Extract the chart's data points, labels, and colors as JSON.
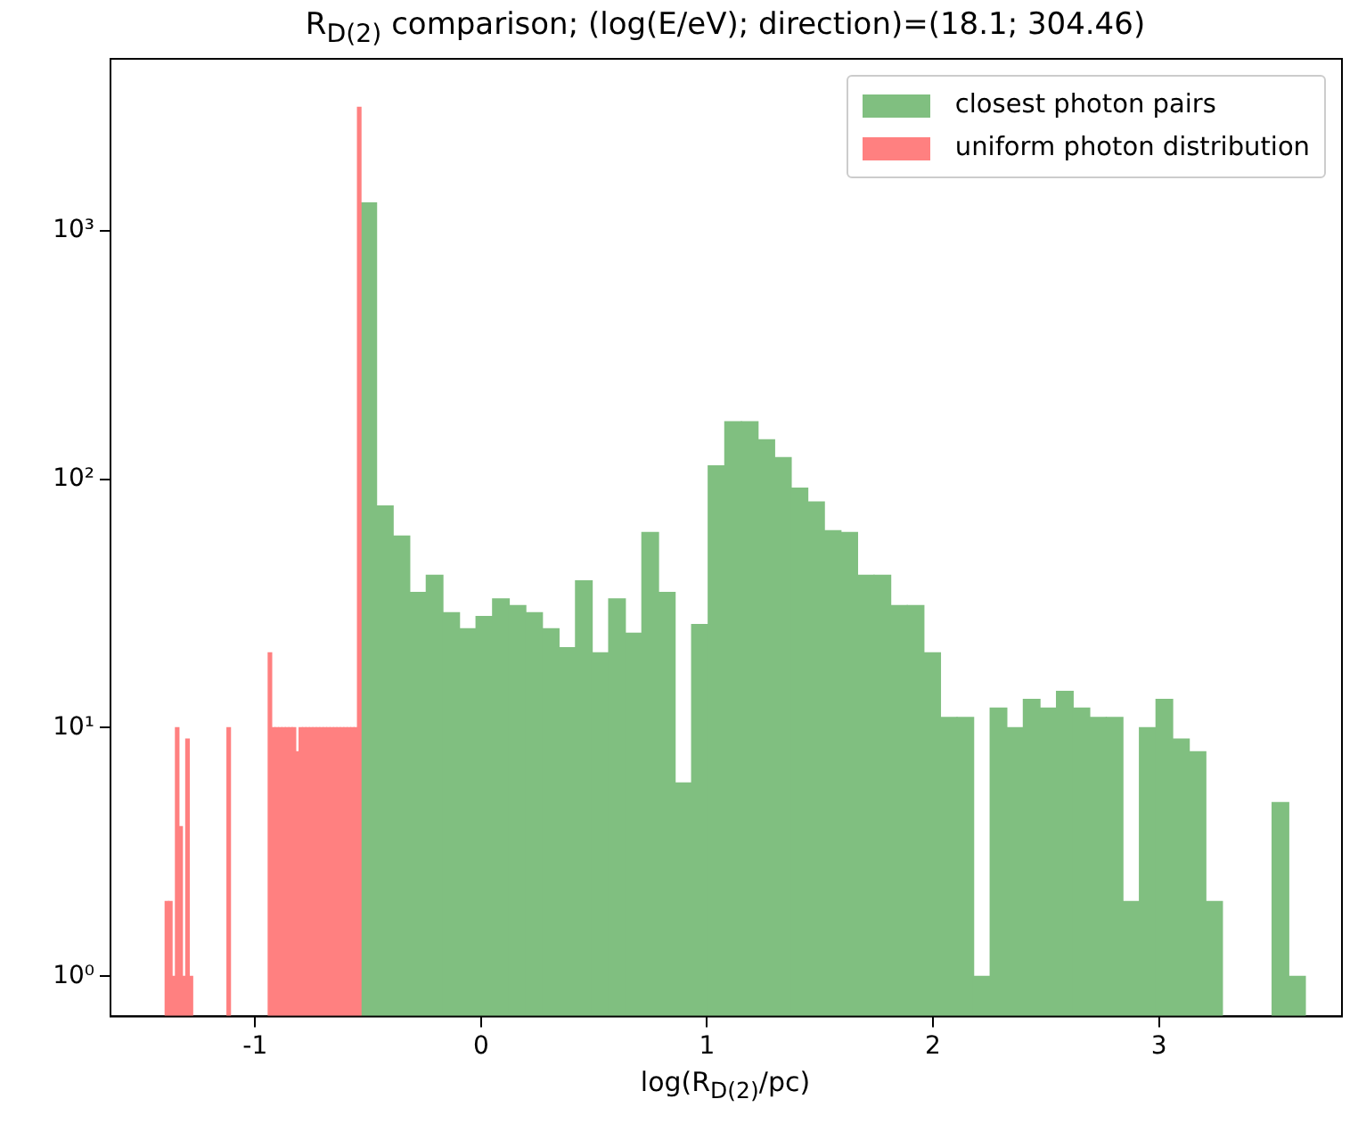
{
  "chart_data": {
    "type": "histogram",
    "title": "R$_{D(2)}$ comparison; (log(E/eV); direction)=(18.1; 304.46)",
    "xlabel": "log(R$_{D(2)}$/pc)",
    "log": "y",
    "grid": false,
    "legend": "top right",
    "xlim": [
      -1.64,
      3.81
    ],
    "xticks": [
      -1,
      0,
      1,
      2,
      3
    ],
    "ylim": [
      0.69,
      4900
    ],
    "yticks": [
      {
        "value": 1,
        "label": "10⁰"
      },
      {
        "value": 10,
        "label": "10¹"
      },
      {
        "value": 100,
        "label": "10²"
      },
      {
        "value": 1000,
        "label": "10³"
      }
    ],
    "bins": [
      -0.536,
      -0.4626,
      -0.3892,
      -0.3158,
      -0.2424,
      -0.169,
      -0.0956,
      -0.0222,
      0.0512,
      0.1246,
      0.198,
      0.2714,
      0.3448,
      0.4182,
      0.4916,
      0.565,
      0.6384,
      0.7118,
      0.7852,
      0.8586,
      0.932,
      1.0054,
      1.0788,
      1.1522,
      1.2256,
      1.299,
      1.3724,
      1.4458,
      1.5192,
      1.5926,
      1.666,
      1.7394,
      1.8128,
      1.8862,
      1.9596,
      2.033,
      2.1064,
      2.1798,
      2.2532,
      2.3266,
      2.4,
      2.4734,
      2.5468,
      2.6202,
      2.6936,
      2.767,
      2.8404,
      2.9138,
      2.9872,
      3.0606,
      3.134,
      3.2074,
      3.2808,
      3.3542,
      3.4276,
      3.501,
      3.5744,
      3.6478
    ],
    "series": [
      {
        "name": "closest photon pairs",
        "color": "#80bf80",
        "values": [
          1290,
          78,
          59,
          35,
          41,
          29,
          25,
          28,
          33,
          31,
          29,
          25,
          21,
          39,
          20,
          33,
          24,
          61,
          35,
          6,
          26,
          113,
          170,
          170,
          144,
          122,
          92,
          81,
          62,
          61,
          41,
          41,
          31,
          31,
          20,
          11,
          11,
          1,
          12,
          10,
          13,
          12,
          14,
          12,
          11,
          11,
          2,
          10,
          13,
          9,
          8,
          2,
          null,
          null,
          null,
          5,
          1
        ]
      },
      {
        "name": "uniform photon distribution",
        "color": "#ff8080",
        "bins": [
          -1.398,
          -1.3828,
          -1.3676,
          -1.3524,
          -1.3372,
          -1.322,
          -1.3068,
          -1.2916,
          -1.2764,
          -1.2612,
          -1.246,
          -1.2308,
          -1.2156,
          -1.2004,
          -1.1852,
          -1.17,
          -1.1548,
          -1.1396,
          -1.1244,
          -1.1092,
          -1.094,
          -1.0788,
          -1.0636,
          -1.0484,
          -1.0332,
          -1.018,
          -1.0028,
          -0.9876,
          -0.9724,
          -0.9572,
          -0.942,
          -0.9268,
          -0.9116,
          -0.8964,
          -0.8812,
          -0.866,
          -0.8508,
          -0.8356,
          -0.8204,
          -0.8052,
          -0.79,
          -0.7748,
          -0.7596,
          -0.7444,
          -0.7292,
          -0.714,
          -0.6988,
          -0.6836,
          -0.6684,
          -0.6532,
          -0.638,
          -0.6228,
          -0.6076,
          -0.5924,
          -0.5772,
          -0.562,
          -0.5468,
          -0.5316
        ],
        "values": [
          2,
          2,
          1,
          10,
          4,
          1,
          9,
          1,
          null,
          null,
          null,
          null,
          null,
          null,
          null,
          null,
          null,
          null,
          10,
          null,
          null,
          null,
          null,
          null,
          null,
          null,
          null,
          null,
          null,
          null,
          20,
          10,
          10,
          10,
          10,
          10,
          10,
          10,
          8,
          10,
          10,
          10,
          10,
          10,
          10,
          10,
          10,
          10,
          10,
          10,
          10,
          10,
          10,
          10,
          10,
          10,
          3126
        ]
      }
    ]
  }
}
